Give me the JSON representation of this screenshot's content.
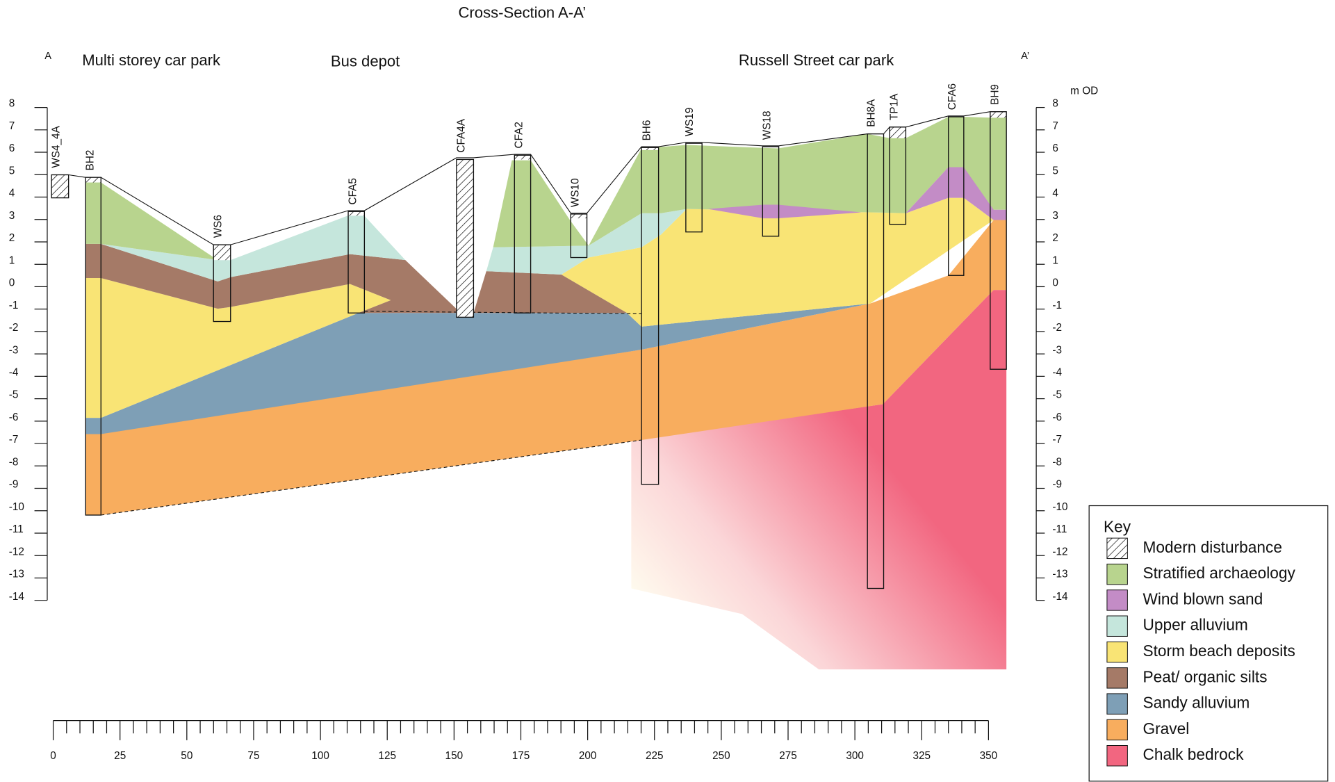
{
  "title": "Cross-Section A-A’",
  "ends": [
    "A",
    "A’"
  ],
  "sites": [
    "Multi storey car park",
    "Bus depot",
    "Russell Street car park"
  ],
  "boreholes": [
    "WS4_4A",
    "BH2",
    "WS6",
    "CFA5",
    "CFA4A",
    "CFA2",
    "WS10",
    "BH6",
    "WS19",
    "WS18",
    "BH8A",
    "TP1A",
    "CFA6",
    "BH9"
  ],
  "y_axis": {
    "unit": "m OD",
    "ticks": [
      8,
      7,
      6,
      5,
      4,
      3,
      2,
      1,
      0,
      -1,
      -2,
      -3,
      -4,
      -5,
      -6,
      -7,
      -8,
      -9,
      -10,
      -11,
      -12,
      -13,
      -14
    ]
  },
  "x_axis": {
    "ticks": [
      0,
      25,
      50,
      75,
      100,
      125,
      150,
      175,
      200,
      225,
      250,
      275,
      300,
      325,
      350
    ]
  },
  "key": {
    "title": "Key",
    "items": [
      {
        "label": "Modern disturbance",
        "color": "hatch"
      },
      {
        "label": "Stratified archaeology",
        "color": "#b8d48e"
      },
      {
        "label": "Wind blown sand",
        "color": "#c38cc6"
      },
      {
        "label": "Upper alluvium",
        "color": "#c5e6dc"
      },
      {
        "label": "Storm beach deposits",
        "color": "#f9e475"
      },
      {
        "label": "Peat/ organic silts",
        "color": "#a57a67"
      },
      {
        "label": "Sandy alluvium",
        "color": "#7e9fb6"
      },
      {
        "label": "Gravel",
        "color": "#f8ad5e"
      },
      {
        "label": "Chalk bedrock",
        "color": "#f26680"
      }
    ]
  }
}
